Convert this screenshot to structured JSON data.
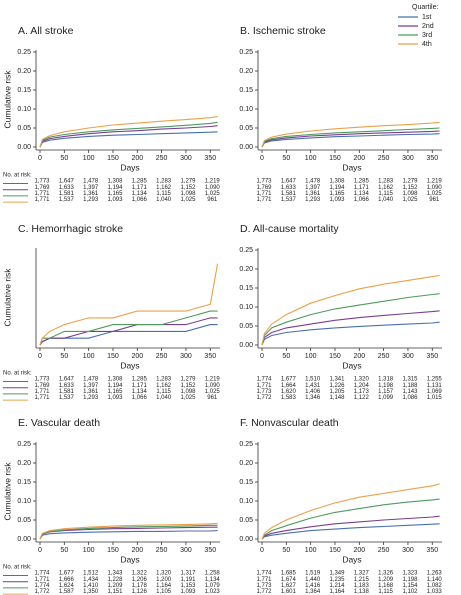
{
  "legend": {
    "title": "Quartile:",
    "items": [
      {
        "name": "1st",
        "color": "#4a6fb0"
      },
      {
        "name": "2nd",
        "color": "#7a3d8f"
      },
      {
        "name": "3rd",
        "color": "#4f9a5e"
      },
      {
        "name": "4th",
        "color": "#eba04a"
      }
    ]
  },
  "chart_data": [
    {
      "type": "line",
      "title": "A. All stroke",
      "y_label": "Cumulative risk",
      "x_label": "Days",
      "x": [
        0,
        5,
        20,
        50,
        100,
        150,
        200,
        250,
        300,
        350,
        365
      ],
      "xlim": [
        0,
        370
      ],
      "xticks": [
        0,
        50,
        100,
        150,
        200,
        250,
        300,
        350
      ],
      "ylim": [
        0,
        0.25
      ],
      "yticks": [
        {
          "value": 0,
          "label": "0.00"
        },
        {
          "value": 0.05,
          "label": "0.05"
        },
        {
          "value": 0.1,
          "label": "0.10"
        },
        {
          "value": 0.15,
          "label": "0.15"
        },
        {
          "value": 0.2,
          "label": "0.20"
        },
        {
          "value": 0.25,
          "label": "0.25"
        }
      ],
      "series": [
        {
          "values": [
            0,
            0.012,
            0.018,
            0.023,
            0.028,
            0.031,
            0.033,
            0.035,
            0.037,
            0.039,
            0.04
          ]
        },
        {
          "values": [
            0,
            0.015,
            0.022,
            0.028,
            0.035,
            0.04,
            0.043,
            0.047,
            0.05,
            0.054,
            0.056
          ]
        },
        {
          "values": [
            0,
            0.018,
            0.026,
            0.033,
            0.04,
            0.045,
            0.049,
            0.053,
            0.057,
            0.062,
            0.065
          ]
        },
        {
          "values": [
            0,
            0.02,
            0.03,
            0.04,
            0.05,
            0.058,
            0.063,
            0.068,
            0.072,
            0.077,
            0.08
          ]
        }
      ],
      "at_risk": {
        "label": "No. at risk:",
        "rows": [
          [
            "1,773",
            "1,647",
            "1,478",
            "1,308",
            "1,285",
            "1,283",
            "1,279",
            "1,219"
          ],
          [
            "1,769",
            "1,633",
            "1,397",
            "1,194",
            "1,171",
            "1,162",
            "1,152",
            "1,090"
          ],
          [
            "1,771",
            "1,581",
            "1,361",
            "1,165",
            "1,134",
            "1,115",
            "1,098",
            "1,025"
          ],
          [
            "1,771",
            "1,537",
            "1,293",
            "1,093",
            "1,066",
            "1,040",
            "1,025",
            "961"
          ]
        ]
      }
    },
    {
      "type": "line",
      "title": "B. Ischemic stroke",
      "x_label": "Days",
      "x": [
        0,
        5,
        20,
        50,
        100,
        150,
        200,
        250,
        300,
        350,
        365
      ],
      "xlim": [
        0,
        370
      ],
      "xticks": [
        0,
        50,
        100,
        150,
        200,
        250,
        300,
        350
      ],
      "ylim": [
        0,
        0.25
      ],
      "yticks": [
        {
          "value": 0,
          "label": "0.00"
        },
        {
          "value": 0.05,
          "label": "0.05"
        },
        {
          "value": 0.1,
          "label": "0.10"
        },
        {
          "value": 0.15,
          "label": "0.15"
        },
        {
          "value": 0.2,
          "label": "0.20"
        },
        {
          "value": 0.25,
          "label": "0.25"
        }
      ],
      "series": [
        {
          "values": [
            0,
            0.011,
            0.016,
            0.02,
            0.024,
            0.027,
            0.029,
            0.031,
            0.033,
            0.034,
            0.035
          ]
        },
        {
          "values": [
            0,
            0.013,
            0.019,
            0.024,
            0.029,
            0.032,
            0.035,
            0.037,
            0.039,
            0.041,
            0.042
          ]
        },
        {
          "values": [
            0,
            0.015,
            0.022,
            0.028,
            0.033,
            0.037,
            0.04,
            0.043,
            0.046,
            0.049,
            0.05
          ]
        },
        {
          "values": [
            0,
            0.017,
            0.026,
            0.034,
            0.042,
            0.048,
            0.052,
            0.056,
            0.059,
            0.063,
            0.065
          ]
        }
      ],
      "at_risk": {
        "rows": [
          [
            "1,773",
            "1,647",
            "1,478",
            "1,308",
            "1,285",
            "1,283",
            "1,279",
            "1,219"
          ],
          [
            "1,769",
            "1,633",
            "1,397",
            "1,194",
            "1,171",
            "1,162",
            "1,152",
            "1,090"
          ],
          [
            "1,771",
            "1,581",
            "1,361",
            "1,165",
            "1,134",
            "1,115",
            "1,098",
            "1,025"
          ],
          [
            "1,771",
            "1,537",
            "1,293",
            "1,093",
            "1,066",
            "1,040",
            "1,025",
            "961"
          ]
        ]
      }
    },
    {
      "type": "line",
      "title": "C. Hemorrhagic stroke",
      "y_label": "Cumulative risk",
      "x_label": "Days",
      "x": [
        0,
        5,
        20,
        50,
        100,
        150,
        200,
        250,
        300,
        350,
        365
      ],
      "xlim": [
        0,
        370
      ],
      "xticks": [
        0,
        50,
        100,
        150,
        200,
        250,
        300,
        350
      ],
      "ylim": [
        0,
        0.014
      ],
      "series": [
        {
          "values": [
            0,
            0.0005,
            0.001,
            0.001,
            0.001,
            0.002,
            0.002,
            0.002,
            0.002,
            0.003,
            0.003
          ]
        },
        {
          "values": [
            0,
            0.0005,
            0.001,
            0.001,
            0.002,
            0.002,
            0.003,
            0.003,
            0.003,
            0.004,
            0.004
          ]
        },
        {
          "values": [
            0,
            0.001,
            0.001,
            0.002,
            0.002,
            0.003,
            0.003,
            0.003,
            0.004,
            0.005,
            0.005
          ]
        },
        {
          "values": [
            0,
            0.001,
            0.002,
            0.003,
            0.004,
            0.004,
            0.005,
            0.005,
            0.005,
            0.006,
            0.012
          ]
        }
      ],
      "at_risk": {
        "label": "No. at risk:",
        "rows": [
          [
            "1,773",
            "1,647",
            "1,478",
            "1,308",
            "1,285",
            "1,283",
            "1,279",
            "1,219"
          ],
          [
            "1,769",
            "1,633",
            "1,397",
            "1,194",
            "1,171",
            "1,162",
            "1,152",
            "1,090"
          ],
          [
            "1,771",
            "1,581",
            "1,361",
            "1,165",
            "1,134",
            "1,115",
            "1,098",
            "1,025"
          ],
          [
            "1,771",
            "1,537",
            "1,293",
            "1,093",
            "1,066",
            "1,040",
            "1,025",
            "961"
          ]
        ]
      }
    },
    {
      "type": "line",
      "title": "D. All-cause mortality",
      "x_label": "Days",
      "x": [
        0,
        5,
        20,
        50,
        100,
        150,
        200,
        250,
        300,
        350,
        365
      ],
      "xlim": [
        0,
        370
      ],
      "xticks": [
        0,
        50,
        100,
        150,
        200,
        250,
        300,
        350
      ],
      "ylim": [
        0,
        0.25
      ],
      "yticks": [
        {
          "value": 0,
          "label": "0.00"
        },
        {
          "value": 0.05,
          "label": "0.05"
        },
        {
          "value": 0.1,
          "label": "0.10"
        },
        {
          "value": 0.15,
          "label": "0.15"
        },
        {
          "value": 0.2,
          "label": "0.20"
        },
        {
          "value": 0.25,
          "label": "0.25"
        }
      ],
      "series": [
        {
          "values": [
            0,
            0.015,
            0.025,
            0.033,
            0.04,
            0.045,
            0.049,
            0.052,
            0.055,
            0.058,
            0.06
          ]
        },
        {
          "values": [
            0,
            0.02,
            0.033,
            0.045,
            0.055,
            0.065,
            0.072,
            0.078,
            0.083,
            0.088,
            0.09
          ]
        },
        {
          "values": [
            0,
            0.025,
            0.045,
            0.06,
            0.08,
            0.095,
            0.105,
            0.115,
            0.125,
            0.133,
            0.135
          ]
        },
        {
          "values": [
            0,
            0.03,
            0.055,
            0.08,
            0.11,
            0.13,
            0.148,
            0.16,
            0.17,
            0.18,
            0.183
          ]
        }
      ],
      "at_risk": {
        "rows": [
          [
            "1,774",
            "1,677",
            "1,510",
            "1,341",
            "1,320",
            "1,318",
            "1,315",
            "1,255"
          ],
          [
            "1,771",
            "1,664",
            "1,431",
            "1,226",
            "1,204",
            "1,198",
            "1,188",
            "1,131"
          ],
          [
            "1,773",
            "1,620",
            "1,406",
            "1,205",
            "1,173",
            "1,157",
            "1,143",
            "1,069"
          ],
          [
            "1,772",
            "1,583",
            "1,346",
            "1,148",
            "1,122",
            "1,099",
            "1,086",
            "1,015"
          ]
        ]
      }
    },
    {
      "type": "line",
      "title": "E. Vascular death",
      "y_label": "Cumulative risk",
      "x_label": "Days",
      "x": [
        0,
        5,
        20,
        50,
        100,
        150,
        200,
        250,
        300,
        350,
        365
      ],
      "xlim": [
        0,
        370
      ],
      "xticks": [
        0,
        50,
        100,
        150,
        200,
        250,
        300,
        350
      ],
      "ylim": [
        0,
        0.25
      ],
      "yticks": [
        {
          "value": 0,
          "label": "0.00"
        },
        {
          "value": 0.05,
          "label": "0.05"
        },
        {
          "value": 0.1,
          "label": "0.10"
        },
        {
          "value": 0.15,
          "label": "0.15"
        },
        {
          "value": 0.2,
          "label": "0.20"
        },
        {
          "value": 0.25,
          "label": "0.25"
        }
      ],
      "series": [
        {
          "values": [
            0,
            0.01,
            0.014,
            0.016,
            0.018,
            0.019,
            0.02,
            0.02,
            0.021,
            0.021,
            0.022
          ]
        },
        {
          "values": [
            0,
            0.013,
            0.019,
            0.022,
            0.025,
            0.027,
            0.028,
            0.029,
            0.03,
            0.031,
            0.031
          ]
        },
        {
          "values": [
            0,
            0.014,
            0.02,
            0.024,
            0.028,
            0.03,
            0.032,
            0.033,
            0.034,
            0.036,
            0.036
          ]
        },
        {
          "values": [
            0,
            0.015,
            0.022,
            0.027,
            0.031,
            0.034,
            0.036,
            0.037,
            0.038,
            0.04,
            0.041
          ]
        }
      ],
      "at_risk": {
        "label": "No. at risk:",
        "rows": [
          [
            "1,774",
            "1,677",
            "1,512",
            "1,343",
            "1,322",
            "1,320",
            "1,317",
            "1,258"
          ],
          [
            "1,771",
            "1,666",
            "1,434",
            "1,228",
            "1,206",
            "1,200",
            "1,191",
            "1,134"
          ],
          [
            "1,774",
            "1,624",
            "1,410",
            "1,209",
            "1,178",
            "1,164",
            "1,153",
            "1,079"
          ],
          [
            "1,772",
            "1,587",
            "1,350",
            "1,151",
            "1,126",
            "1,105",
            "1,093",
            "1,023"
          ]
        ]
      }
    },
    {
      "type": "line",
      "title": "F. Nonvascular death",
      "x_label": "Days",
      "x": [
        0,
        5,
        20,
        50,
        100,
        150,
        200,
        250,
        300,
        350,
        365
      ],
      "xlim": [
        0,
        370
      ],
      "xticks": [
        0,
        50,
        100,
        150,
        200,
        250,
        300,
        350
      ],
      "ylim": [
        0,
        0.25
      ],
      "yticks": [
        {
          "value": 0,
          "label": "0.00"
        },
        {
          "value": 0.05,
          "label": "0.05"
        },
        {
          "value": 0.1,
          "label": "0.10"
        },
        {
          "value": 0.15,
          "label": "0.15"
        },
        {
          "value": 0.2,
          "label": "0.20"
        },
        {
          "value": 0.25,
          "label": "0.25"
        }
      ],
      "series": [
        {
          "values": [
            0,
            0.006,
            0.01,
            0.015,
            0.022,
            0.026,
            0.03,
            0.033,
            0.036,
            0.039,
            0.04
          ]
        },
        {
          "values": [
            0,
            0.008,
            0.015,
            0.022,
            0.032,
            0.04,
            0.045,
            0.05,
            0.054,
            0.058,
            0.06
          ]
        },
        {
          "values": [
            0,
            0.01,
            0.022,
            0.035,
            0.055,
            0.07,
            0.08,
            0.09,
            0.097,
            0.103,
            0.105
          ]
        },
        {
          "values": [
            0,
            0.015,
            0.03,
            0.05,
            0.075,
            0.095,
            0.11,
            0.12,
            0.13,
            0.14,
            0.145
          ]
        }
      ],
      "at_risk": {
        "rows": [
          [
            "1,774",
            "1,685",
            "1,519",
            "1,349",
            "1,327",
            "1,326",
            "1,323",
            "1,263"
          ],
          [
            "1,771",
            "1,674",
            "1,440",
            "1,235",
            "1,215",
            "1,209",
            "1,198",
            "1,140"
          ],
          [
            "1,773",
            "1,627",
            "1,416",
            "1,214",
            "1,183",
            "1,168",
            "1,154",
            "1,082"
          ],
          [
            "1,772",
            "1,601",
            "1,364",
            "1,164",
            "1,138",
            "1,115",
            "1,102",
            "1,033"
          ]
        ]
      }
    }
  ]
}
